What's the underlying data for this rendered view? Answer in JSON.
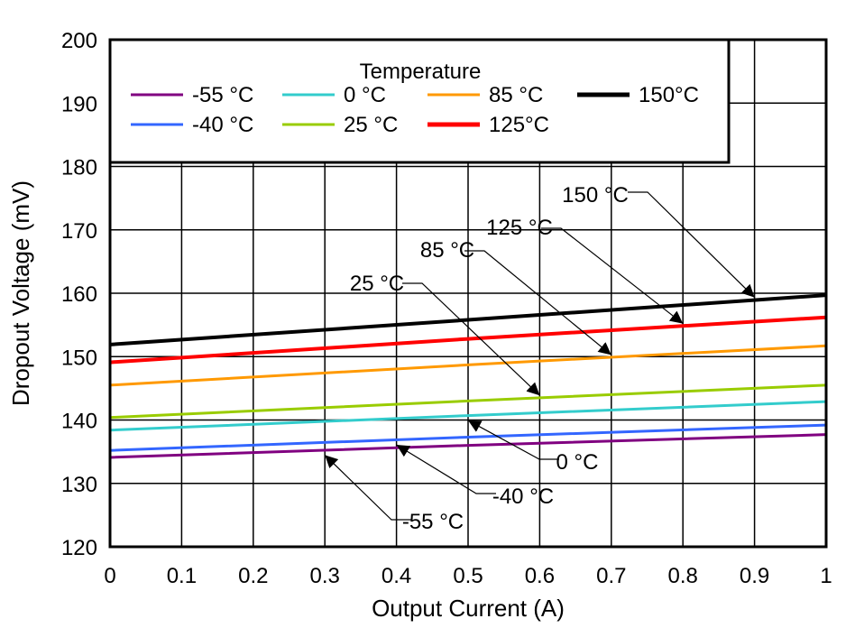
{
  "chart_data": {
    "type": "line",
    "xlabel": "Output Current (A)",
    "ylabel": "Dropout Voltage (mV)",
    "xlim": [
      0,
      1
    ],
    "ylim": [
      120,
      200
    ],
    "xticks": [
      "0",
      "0.1",
      "0.2",
      "0.3",
      "0.4",
      "0.5",
      "0.6",
      "0.7",
      "0.8",
      "0.9",
      "1"
    ],
    "yticks": [
      "120",
      "130",
      "140",
      "150",
      "160",
      "170",
      "180",
      "190",
      "200"
    ],
    "grid": true,
    "legend": {
      "title": "Temperature",
      "placement": "top-left"
    },
    "x": [
      0,
      0.5,
      1
    ],
    "series": [
      {
        "name": "-55 °C",
        "color": "#800080",
        "values": [
          134.1,
          136.0,
          137.7
        ],
        "annotation": "-55 °C"
      },
      {
        "name": "-40 °C",
        "color": "#3366ff",
        "values": [
          135.2,
          137.3,
          139.2
        ],
        "annotation": "-40 °C"
      },
      {
        "name": "0 °C",
        "color": "#33cccc",
        "values": [
          138.4,
          140.7,
          142.9
        ],
        "annotation": "0 °C"
      },
      {
        "name": "25 °C",
        "color": "#99cc00",
        "values": [
          140.4,
          143.0,
          145.5
        ],
        "annotation": "25 °C"
      },
      {
        "name": "85 °C",
        "color": "#ff9900",
        "values": [
          145.5,
          148.7,
          151.7
        ],
        "annotation": "85 °C"
      },
      {
        "name": "125°C",
        "color": "#ff0000",
        "values": [
          149.1,
          152.8,
          156.2
        ],
        "annotation": "125 °C"
      },
      {
        "name": "150°C",
        "color": "#000000",
        "values": [
          151.9,
          155.8,
          159.7
        ],
        "annotation": "150 °C"
      }
    ]
  }
}
